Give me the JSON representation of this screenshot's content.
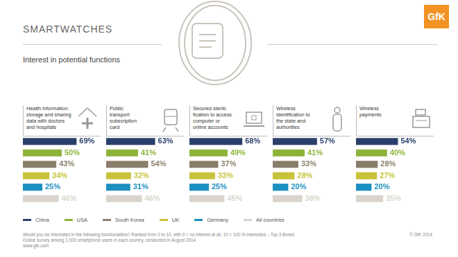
{
  "header": {
    "title": "SMARTWATCHES",
    "subtitle": "Interest in potential functions",
    "logo": "GfK"
  },
  "legend": "bottom",
  "chart_data": [
    {
      "type": "bar",
      "orientation": "horizontal",
      "title": [
        "Health information:",
        "storage and sharing",
        "data with doctors",
        "and hospitals"
      ],
      "categories": [
        "China",
        "USA",
        "South Korea",
        "UK",
        "Germany",
        "All countries"
      ],
      "values": [
        69,
        50,
        43,
        34,
        25,
        46
      ],
      "value_labels": [
        "69%",
        "50%",
        "43%",
        "34%",
        "25%",
        "46%"
      ],
      "colors": [
        "#2b3f6b",
        "#8db33a",
        "#8b7d6b",
        "#c8c23a",
        "#1a8fc0",
        "#d9d4cc"
      ],
      "xlim": [
        0,
        100
      ],
      "grid": false,
      "tick_labels": false,
      "data_labels": true
    },
    {
      "type": "bar",
      "orientation": "horizontal",
      "title": [
        "Public",
        "transport",
        "subscription",
        "card"
      ],
      "categories": [
        "China",
        "USA",
        "South Korea",
        "UK",
        "Germany",
        "All countries"
      ],
      "values": [
        63,
        41,
        54,
        32,
        31,
        46
      ],
      "value_labels": [
        "63%",
        "41%",
        "54%",
        "32%",
        "31%",
        "46%"
      ],
      "colors": [
        "#2b3f6b",
        "#8db33a",
        "#8b7d6b",
        "#c8c23a",
        "#1a8fc0",
        "#d9d4cc"
      ],
      "xlim": [
        0,
        100
      ],
      "grid": false,
      "tick_labels": false,
      "data_labels": true
    },
    {
      "type": "bar",
      "orientation": "horizontal",
      "title": [
        "Secured identi-",
        "fication to access",
        "computer or",
        "online accounts"
      ],
      "categories": [
        "China",
        "USA",
        "South Korea",
        "UK",
        "Germany",
        "All countries"
      ],
      "values": [
        68,
        49,
        37,
        33,
        25,
        45
      ],
      "value_labels": [
        "68%",
        "49%",
        "37%",
        "33%",
        "25%",
        "45%"
      ],
      "colors": [
        "#2b3f6b",
        "#8db33a",
        "#8b7d6b",
        "#c8c23a",
        "#1a8fc0",
        "#d9d4cc"
      ],
      "xlim": [
        0,
        100
      ],
      "grid": false,
      "tick_labels": false,
      "data_labels": true
    },
    {
      "type": "bar",
      "orientation": "horizontal",
      "title": [
        "Wireless",
        "identification to",
        "the state and",
        "authorities"
      ],
      "categories": [
        "China",
        "USA",
        "South Korea",
        "UK",
        "Germany",
        "All countries"
      ],
      "values": [
        57,
        41,
        33,
        28,
        20,
        38
      ],
      "value_labels": [
        "57%",
        "41%",
        "33%",
        "28%",
        "20%",
        "38%"
      ],
      "colors": [
        "#2b3f6b",
        "#8db33a",
        "#8b7d6b",
        "#c8c23a",
        "#1a8fc0",
        "#d9d4cc"
      ],
      "xlim": [
        0,
        100
      ],
      "grid": false,
      "tick_labels": false,
      "data_labels": true
    },
    {
      "type": "bar",
      "orientation": "horizontal",
      "title": [
        "Wireless",
        "payments"
      ],
      "categories": [
        "China",
        "USA",
        "South Korea",
        "UK",
        "Germany",
        "All countries"
      ],
      "values": [
        54,
        40,
        28,
        27,
        20,
        35
      ],
      "value_labels": [
        "54%",
        "40%",
        "28%",
        "27%",
        "20%",
        "35%"
      ],
      "colors": [
        "#2b3f6b",
        "#8db33a",
        "#8b7d6b",
        "#c8c23a",
        "#1a8fc0",
        "#d9d4cc"
      ],
      "xlim": [
        0,
        100
      ],
      "grid": false,
      "tick_labels": false,
      "data_labels": true
    }
  ],
  "footer": {
    "notes": [
      "Would you be interested in the following functionalities? Ranked from 0 to 10, with 0 = no interest at all, 10 = 100 % interested – Top 3 Boxes",
      "Online survey among 1,000 smartphone users in each country, conducted in August 2014",
      "www.gfk.com"
    ],
    "copyright": "© GfK 2014"
  }
}
